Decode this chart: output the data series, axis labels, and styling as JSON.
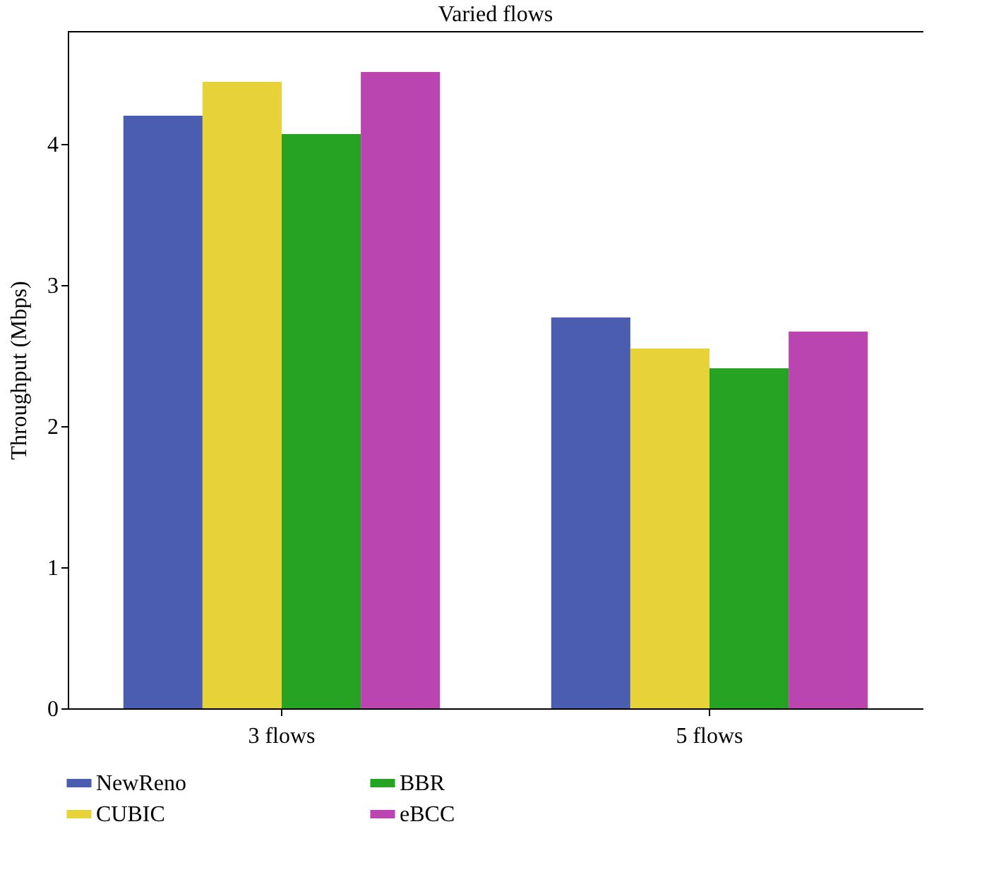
{
  "chart_data": {
    "type": "bar",
    "title": "Varied flows",
    "ylabel": "Throughput (Mbps)",
    "categories": [
      "3 flows",
      "5 flows"
    ],
    "series": [
      {
        "name": "NewReno",
        "color": "#4a5db0",
        "values": [
          4.2,
          2.77
        ]
      },
      {
        "name": "CUBIC",
        "color": "#e8d23a",
        "values": [
          4.44,
          2.55
        ]
      },
      {
        "name": "BBR",
        "color": "#27a324",
        "values": [
          4.07,
          2.41
        ]
      },
      {
        "name": "eBCC",
        "color": "#bb45b0",
        "values": [
          4.51,
          2.67
        ]
      }
    ],
    "ylim": [
      0,
      4.8
    ],
    "yticks": [
      0,
      1,
      2,
      3,
      4
    ],
    "grid": false,
    "legend": "bottom"
  }
}
